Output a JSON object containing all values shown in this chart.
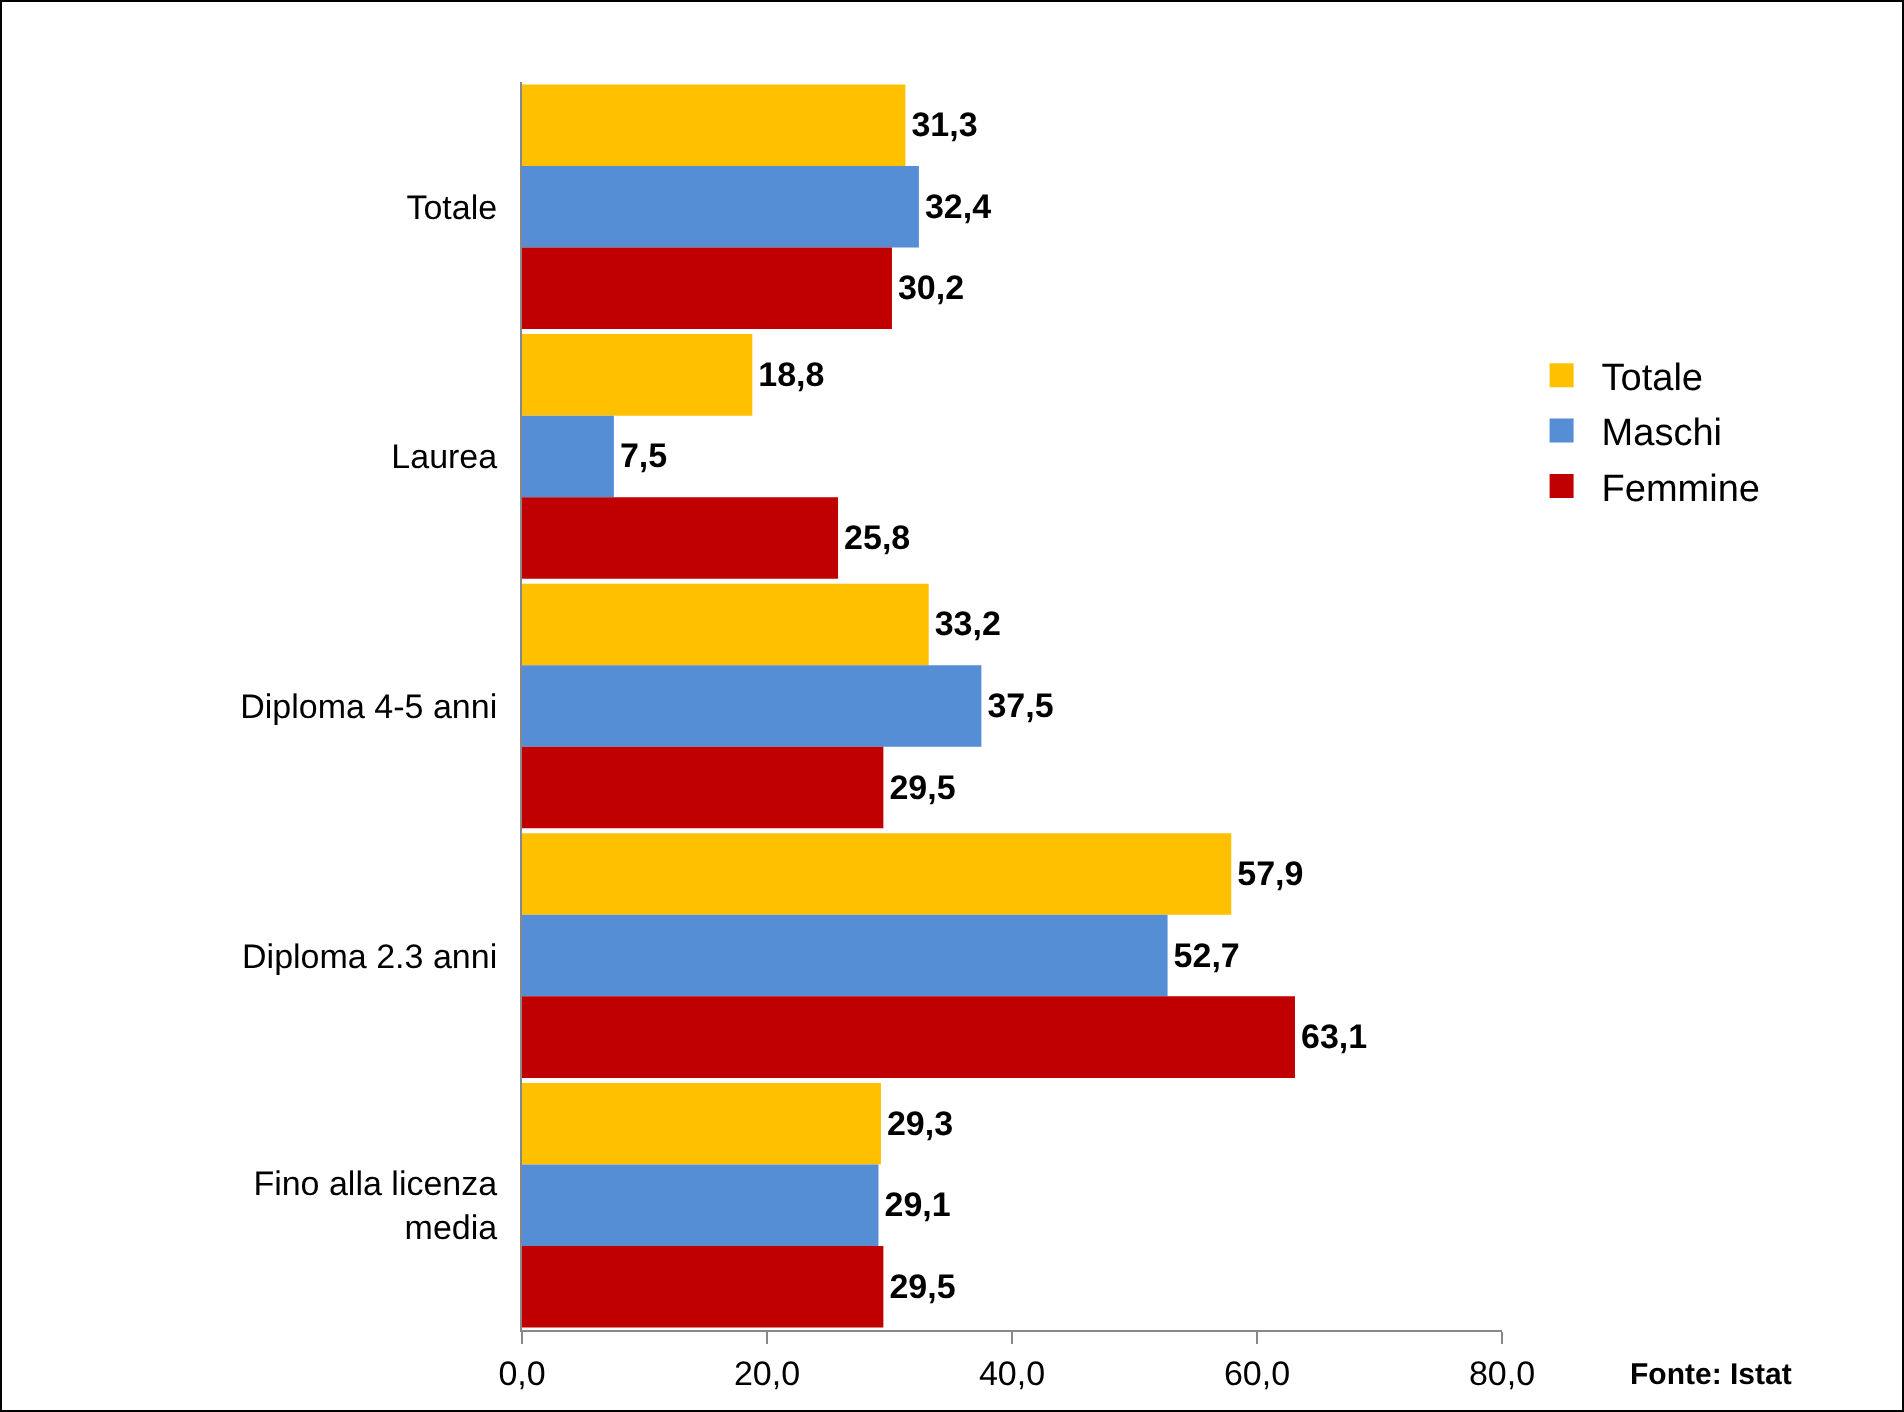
{
  "chart_data": {
    "type": "bar",
    "orientation": "horizontal",
    "categories": [
      "Totale",
      "Laurea",
      "Diploma 4-5 anni",
      "Diploma 2.3 anni",
      "Fino alla licenza media"
    ],
    "series": [
      {
        "name": "Totale",
        "color": "#ffc000",
        "values": [
          31.3,
          18.8,
          33.2,
          57.9,
          29.3
        ],
        "value_labels": [
          "31,3",
          "18,8",
          "33,2",
          "57,9",
          "29,3"
        ]
      },
      {
        "name": "Maschi",
        "color": "#558ed5",
        "values": [
          32.4,
          7.5,
          37.5,
          52.7,
          29.1
        ],
        "value_labels": [
          "32,4",
          "7,5",
          "37,5",
          "52,7",
          "29,1"
        ]
      },
      {
        "name": "Femmine",
        "color": "#c00000",
        "values": [
          30.2,
          25.8,
          29.5,
          63.1,
          29.5
        ],
        "value_labels": [
          "30,2",
          "25,8",
          "29,5",
          "63,1",
          "29,5"
        ]
      }
    ],
    "xlim": [
      0,
      80
    ],
    "xticks": [
      {
        "value": 0,
        "label": "0,0"
      },
      {
        "value": 20,
        "label": "20,0"
      },
      {
        "value": 40,
        "label": "40,0"
      },
      {
        "value": 60,
        "label": "60,0"
      },
      {
        "value": 80,
        "label": "80,0"
      }
    ],
    "grid": false,
    "legend": "right",
    "annotations": [
      "Fonte: Istat"
    ]
  }
}
